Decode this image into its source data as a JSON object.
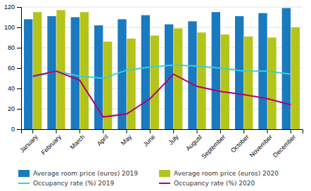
{
  "chart_data": {
    "type": "bar",
    "categories": [
      "January",
      "February",
      "March",
      "April",
      "May",
      "June",
      "July",
      "August",
      "September",
      "October",
      "November",
      "December"
    ],
    "series": [
      {
        "name": "Average room price (euros) 2019",
        "type": "bar",
        "color": "#1a7abf",
        "values": [
          108,
          111,
          110,
          102,
          108,
          112,
          103,
          106,
          115,
          111,
          114,
          119
        ]
      },
      {
        "name": "Average room price (euros) 2020",
        "type": "bar",
        "color": "#b5c41a",
        "values": [
          115,
          117,
          115,
          86,
          89,
          92,
          99,
          95,
          93,
          91,
          90,
          100
        ]
      },
      {
        "name": "Occupancy rate (%) 2019",
        "type": "line",
        "color": "#3ecfcf",
        "values": [
          51,
          57,
          52,
          50,
          58,
          61,
          63,
          62,
          60,
          57,
          57,
          54
        ]
      },
      {
        "name": "Occupancy rate (%) 2020",
        "type": "line",
        "color": "#b5006e",
        "values": [
          52,
          57,
          48,
          12,
          15,
          30,
          54,
          42,
          37,
          34,
          30,
          24
        ]
      }
    ],
    "ylim": [
      0,
      120
    ],
    "yticks": [
      0,
      20,
      40,
      60,
      80,
      100,
      120
    ],
    "grid": true,
    "legend": "bottom"
  }
}
